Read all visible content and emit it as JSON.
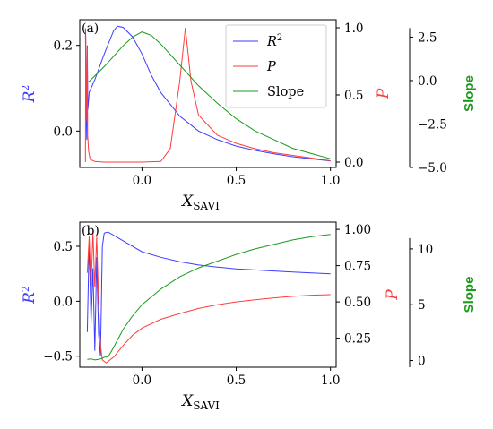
{
  "colors": {
    "r2": "#3b3bff",
    "p": "#ff3b3b",
    "slope": "#1a9a1a",
    "axis": "#000000"
  },
  "chart_data": [
    {
      "type": "line",
      "panel_label": "(a)",
      "xlabel_main": "X",
      "xlabel_sub": "SAVI",
      "xlim": [
        -0.33,
        1.03
      ],
      "xticks": [
        {
          "v": 0.0,
          "t": "0.0"
        },
        {
          "v": 0.5,
          "t": "0.5"
        },
        {
          "v": 1.0,
          "t": "1.0"
        }
      ],
      "axes": {
        "r2": {
          "label": "R",
          "sup": "2",
          "lim": [
            -0.085,
            0.26
          ],
          "ticks": [
            {
              "v": 0.0,
              "t": "0.0"
            },
            {
              "v": 0.2,
              "t": "0.2"
            }
          ]
        },
        "p": {
          "label": "P",
          "lim": [
            -0.04,
            1.06
          ],
          "ticks": [
            {
              "v": 0.0,
              "t": "0.0"
            },
            {
              "v": 0.5,
              "t": "0.5"
            },
            {
              "v": 1.0,
              "t": "1.0"
            }
          ]
        },
        "slope": {
          "label": "Slope",
          "lim": [
            -5.0,
            3.5
          ],
          "ticks": [
            {
              "v": 2.5,
              "t": "2.5"
            },
            {
              "v": 0.0,
              "t": "0.0"
            },
            {
              "v": -2.5,
              "t": "−2.5"
            },
            {
              "v": -5.0,
              "t": "−5.0"
            }
          ]
        }
      },
      "legend": {
        "position": "top-right",
        "entries": [
          {
            "text": "R",
            "sup": "2"
          },
          {
            "text": "P"
          },
          {
            "text": "Slope"
          }
        ]
      },
      "series": [
        {
          "name": "R²",
          "axis": "r2",
          "points": [
            [
              -0.3,
              0.24
            ],
            [
              -0.296,
              0.05
            ],
            [
              -0.293,
              -0.02
            ],
            [
              -0.29,
              0.2
            ],
            [
              -0.287,
              0.05
            ],
            [
              -0.28,
              0.09
            ],
            [
              -0.25,
              0.12
            ],
            [
              -0.2,
              0.18
            ],
            [
              -0.15,
              0.235
            ],
            [
              -0.13,
              0.245
            ],
            [
              -0.1,
              0.242
            ],
            [
              -0.05,
              0.22
            ],
            [
              0.0,
              0.18
            ],
            [
              0.05,
              0.13
            ],
            [
              0.1,
              0.09
            ],
            [
              0.2,
              0.035
            ],
            [
              0.3,
              0.0
            ],
            [
              0.4,
              -0.02
            ],
            [
              0.5,
              -0.035
            ],
            [
              0.6,
              -0.045
            ],
            [
              0.7,
              -0.053
            ],
            [
              0.8,
              -0.06
            ],
            [
              0.9,
              -0.065
            ],
            [
              1.0,
              -0.07
            ]
          ]
        },
        {
          "name": "P",
          "axis": "p",
          "points": [
            [
              -0.3,
              0.0
            ],
            [
              -0.298,
              0.95
            ],
            [
              -0.296,
              0.6
            ],
            [
              -0.293,
              0.3
            ],
            [
              -0.29,
              0.85
            ],
            [
              -0.288,
              0.2
            ],
            [
              -0.283,
              0.08
            ],
            [
              -0.275,
              0.02
            ],
            [
              -0.25,
              0.005
            ],
            [
              -0.2,
              0.0
            ],
            [
              0.0,
              0.0
            ],
            [
              0.1,
              0.005
            ],
            [
              0.15,
              0.1
            ],
            [
              0.2,
              0.6
            ],
            [
              0.23,
              1.0
            ],
            [
              0.26,
              0.6
            ],
            [
              0.3,
              0.35
            ],
            [
              0.4,
              0.2
            ],
            [
              0.5,
              0.14
            ],
            [
              0.6,
              0.1
            ],
            [
              0.7,
              0.07
            ],
            [
              0.8,
              0.05
            ],
            [
              0.9,
              0.03
            ],
            [
              1.0,
              0.01
            ]
          ]
        },
        {
          "name": "Slope",
          "axis": "slope",
          "points": [
            [
              -0.3,
              -0.1
            ],
            [
              -0.28,
              -0.05
            ],
            [
              -0.2,
              0.8
            ],
            [
              -0.1,
              2.0
            ],
            [
              -0.05,
              2.5
            ],
            [
              0.0,
              2.8
            ],
            [
              0.05,
              2.6
            ],
            [
              0.1,
              2.1
            ],
            [
              0.2,
              0.9
            ],
            [
              0.3,
              -0.3
            ],
            [
              0.4,
              -1.3
            ],
            [
              0.5,
              -2.2
            ],
            [
              0.6,
              -2.9
            ],
            [
              0.7,
              -3.4
            ],
            [
              0.8,
              -3.9
            ],
            [
              0.9,
              -4.2
            ],
            [
              1.0,
              -4.5
            ]
          ]
        }
      ]
    },
    {
      "type": "line",
      "panel_label": "(b)",
      "xlabel_main": "X",
      "xlabel_sub": "SAVI",
      "xlim": [
        -0.33,
        1.03
      ],
      "xticks": [
        {
          "v": 0.0,
          "t": "0.0"
        },
        {
          "v": 0.5,
          "t": "0.5"
        },
        {
          "v": 1.0,
          "t": "1.0"
        }
      ],
      "axes": {
        "r2": {
          "label": "R",
          "sup": "2",
          "lim": [
            -0.6,
            0.72
          ],
          "ticks": [
            {
              "v": 0.5,
              "t": "0.5"
            },
            {
              "v": 0.0,
              "t": "0.0"
            },
            {
              "v": -0.5,
              "t": "−0.5"
            }
          ]
        },
        "p": {
          "label": "P",
          "lim": [
            0.05,
            1.05
          ],
          "ticks": [
            {
              "v": 1.0,
              "t": "1.00"
            },
            {
              "v": 0.75,
              "t": "0.75"
            },
            {
              "v": 0.5,
              "t": "0.50"
            },
            {
              "v": 0.25,
              "t": "0.25"
            }
          ]
        },
        "slope": {
          "label": "Slope",
          "lim": [
            -0.6,
            12.4
          ],
          "ticks": [
            {
              "v": 10,
              "t": "10"
            },
            {
              "v": 5,
              "t": "5"
            },
            {
              "v": 0,
              "t": "0"
            }
          ]
        }
      },
      "series": [
        {
          "name": "R²",
          "axis": "r2",
          "points": [
            [
              -0.29,
              -0.28
            ],
            [
              -0.28,
              0.55
            ],
            [
              -0.27,
              -0.2
            ],
            [
              -0.26,
              0.3
            ],
            [
              -0.25,
              -0.45
            ],
            [
              -0.24,
              0.4
            ],
            [
              -0.23,
              -0.3
            ],
            [
              -0.22,
              -0.5
            ],
            [
              -0.21,
              0.5
            ],
            [
              -0.2,
              0.62
            ],
            [
              -0.18,
              0.63
            ],
            [
              -0.1,
              0.55
            ],
            [
              0.0,
              0.45
            ],
            [
              0.1,
              0.4
            ],
            [
              0.2,
              0.36
            ],
            [
              0.3,
              0.33
            ],
            [
              0.4,
              0.31
            ],
            [
              0.5,
              0.295
            ],
            [
              0.6,
              0.285
            ],
            [
              0.7,
              0.275
            ],
            [
              0.8,
              0.265
            ],
            [
              0.9,
              0.258
            ],
            [
              1.0,
              0.25
            ]
          ]
        },
        {
          "name": "P",
          "axis": "p",
          "points": [
            [
              -0.29,
              0.7
            ],
            [
              -0.28,
              0.95
            ],
            [
              -0.27,
              0.6
            ],
            [
              -0.26,
              0.98
            ],
            [
              -0.25,
              0.6
            ],
            [
              -0.24,
              0.95
            ],
            [
              -0.23,
              0.5
            ],
            [
              -0.22,
              0.2
            ],
            [
              -0.21,
              0.1
            ],
            [
              -0.19,
              0.08
            ],
            [
              -0.15,
              0.12
            ],
            [
              -0.1,
              0.2
            ],
            [
              -0.05,
              0.27
            ],
            [
              0.0,
              0.32
            ],
            [
              0.1,
              0.38
            ],
            [
              0.2,
              0.42
            ],
            [
              0.3,
              0.455
            ],
            [
              0.4,
              0.48
            ],
            [
              0.5,
              0.5
            ],
            [
              0.6,
              0.515
            ],
            [
              0.7,
              0.528
            ],
            [
              0.8,
              0.538
            ],
            [
              0.9,
              0.546
            ],
            [
              1.0,
              0.55
            ]
          ]
        },
        {
          "name": "Slope",
          "axis": "slope",
          "points": [
            [
              -0.29,
              0.1
            ],
            [
              -0.27,
              0.15
            ],
            [
              -0.25,
              0.05
            ],
            [
              -0.23,
              0.1
            ],
            [
              -0.21,
              0.2
            ],
            [
              -0.2,
              0.3
            ],
            [
              -0.18,
              0.3
            ],
            [
              -0.15,
              1.2
            ],
            [
              -0.1,
              2.8
            ],
            [
              -0.05,
              4.0
            ],
            [
              0.0,
              5.0
            ],
            [
              0.1,
              6.4
            ],
            [
              0.2,
              7.5
            ],
            [
              0.3,
              8.3
            ],
            [
              0.4,
              8.9
            ],
            [
              0.5,
              9.5
            ],
            [
              0.6,
              10.0
            ],
            [
              0.7,
              10.4
            ],
            [
              0.8,
              10.8
            ],
            [
              0.9,
              11.1
            ],
            [
              1.0,
              11.3
            ]
          ]
        }
      ]
    }
  ]
}
